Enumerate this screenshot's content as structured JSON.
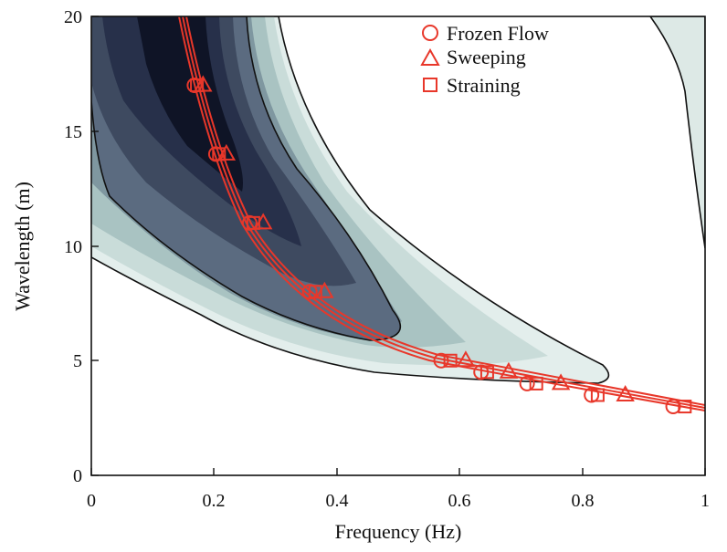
{
  "chart_data": {
    "type": "line",
    "xlabel": "Frequency (Hz)",
    "ylabel": "Wavelength (m)",
    "xlim": [
      0,
      1
    ],
    "ylim": [
      0,
      20
    ],
    "xticks": [
      "0",
      "0.2",
      "0.4",
      "0.6",
      "0.8",
      "1"
    ],
    "yticks": [
      "0",
      "5",
      "10",
      "15",
      "20"
    ],
    "legend_position": "top-right",
    "grid": false,
    "colors": {
      "marker_color": "#e8372a",
      "contour_dark": "#0e1424",
      "contour_light": "#e6f0ee",
      "contour_line": "#111111"
    },
    "series": [
      {
        "name": "Frozen Flow",
        "marker": "circle",
        "points": [
          {
            "x": 0.168,
            "y": 17.0
          },
          {
            "x": 0.203,
            "y": 14.0
          },
          {
            "x": 0.258,
            "y": 11.0
          },
          {
            "x": 0.356,
            "y": 8.0
          },
          {
            "x": 0.57,
            "y": 5.0
          },
          {
            "x": 0.635,
            "y": 4.5
          },
          {
            "x": 0.71,
            "y": 4.0
          },
          {
            "x": 0.815,
            "y": 3.5
          },
          {
            "x": 0.948,
            "y": 3.0
          }
        ]
      },
      {
        "name": "Sweeping",
        "marker": "triangle",
        "points": [
          {
            "x": 0.182,
            "y": 17.0
          },
          {
            "x": 0.22,
            "y": 14.0
          },
          {
            "x": 0.28,
            "y": 11.0
          },
          {
            "x": 0.38,
            "y": 8.0
          },
          {
            "x": 0.61,
            "y": 5.0
          },
          {
            "x": 0.68,
            "y": 4.5
          },
          {
            "x": 0.765,
            "y": 4.0
          },
          {
            "x": 0.87,
            "y": 3.5
          }
        ]
      },
      {
        "name": "Straining",
        "marker": "square",
        "points": [
          {
            "x": 0.172,
            "y": 17.0
          },
          {
            "x": 0.208,
            "y": 14.0
          },
          {
            "x": 0.264,
            "y": 11.0
          },
          {
            "x": 0.365,
            "y": 8.0
          },
          {
            "x": 0.585,
            "y": 5.0
          },
          {
            "x": 0.645,
            "y": 4.5
          },
          {
            "x": 0.725,
            "y": 4.0
          },
          {
            "x": 0.825,
            "y": 3.5
          },
          {
            "x": 0.967,
            "y": 3.0
          }
        ]
      }
    ]
  }
}
